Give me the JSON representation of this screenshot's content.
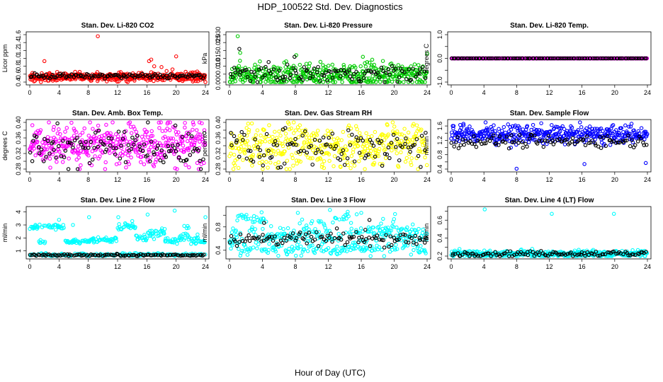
{
  "figure": {
    "title": "HDP_100522  Std. Dev. Diagnostics",
    "xlabel": "Hour of Day (UTC)"
  },
  "chart_data": [
    {
      "type": "scatter",
      "title": "Stan. Dev. Li-820 CO2",
      "ylabel": "Licor ppm",
      "xlim": [
        0,
        24
      ],
      "ylim": [
        0.4,
        1.6
      ],
      "xticks": [
        0,
        4,
        8,
        12,
        16,
        20,
        24
      ],
      "yticks": [
        0.4,
        0.6,
        0.8,
        1.0,
        1.2,
        1.4,
        1.6
      ],
      "ytick_labels": [
        "0.4",
        "0.6",
        "0.8",
        "1.0",
        "1.2",
        "1.4",
        "1.6"
      ],
      "series": [
        {
          "color": "#ff0000",
          "base": 0.53,
          "spread": 0.05,
          "extra": [
            [
              2.0,
              0.93
            ],
            [
              9.3,
              1.56
            ],
            [
              16.3,
              0.93
            ],
            [
              16.6,
              0.97
            ],
            [
              20.0,
              1.05
            ],
            [
              17.0,
              0.8
            ],
            [
              18.0,
              0.78
            ],
            [
              18.7,
              0.68
            ],
            [
              19.5,
              0.72
            ],
            [
              4.8,
              0.62
            ],
            [
              2.7,
              0.63
            ],
            [
              21.3,
              0.66
            ],
            [
              24.0,
              0.4
            ],
            [
              12.4,
              0.58
            ],
            [
              6.2,
              0.66
            ]
          ]
        },
        {
          "color": "#000000",
          "base": 0.55,
          "spread": 0.03,
          "sparse": true,
          "extra": []
        }
      ]
    },
    {
      "type": "scatter",
      "title": "Stan. Dev. Li-820 Pressure",
      "ylabel": "kPa",
      "xlim": [
        0,
        24
      ],
      "ylim": [
        0.0,
        0.03
      ],
      "xticks": [
        0,
        4,
        8,
        12,
        16,
        20,
        24
      ],
      "yticks": [
        0.0,
        0.005,
        0.01,
        0.015,
        0.02,
        0.025,
        0.03
      ],
      "ytick_labels": [
        "0.000",
        "",
        "0.010",
        "0.015",
        "",
        "0.025",
        "0.030"
      ],
      "series": [
        {
          "color": "#00cc00",
          "base": 0.0045,
          "spread": 0.0035,
          "extra": [
            [
              1.0,
              0.029
            ],
            [
              1.3,
              0.0185
            ],
            [
              8.1,
              0.017
            ],
            [
              16.2,
              0.016
            ],
            [
              24.0,
              0.018
            ],
            [
              3.1,
              0.011
            ],
            [
              12.5,
              0.011
            ],
            [
              5.9,
              0.009
            ],
            [
              17.2,
              0.0095
            ],
            [
              20.1,
              0.0085
            ]
          ]
        },
        {
          "color": "#000000",
          "base": 0.0055,
          "spread": 0.0025,
          "sparse": true,
          "extra": [
            [
              1.2,
              0.021
            ],
            [
              7.9,
              0.016
            ]
          ]
        }
      ]
    },
    {
      "type": "scatter",
      "title": "Stan. Dev. Li-820 Temp.",
      "ylabel": "degrees C",
      "xlim": [
        0,
        24
      ],
      "ylim": [
        -1.0,
        1.0
      ],
      "xticks": [
        0,
        4,
        8,
        12,
        16,
        20,
        24
      ],
      "yticks": [
        -1.0,
        -0.5,
        0.0,
        0.5,
        1.0
      ],
      "ytick_labels": [
        "-1.0",
        "",
        "0.0",
        "",
        "1.0"
      ],
      "series": [
        {
          "color": "#ff00ff",
          "base": 0.0,
          "spread": 0.0,
          "extra": []
        },
        {
          "color": "#000000",
          "base": 0.0,
          "spread": 0.0,
          "sparse": true,
          "extra": []
        }
      ]
    },
    {
      "type": "scatter",
      "title": "Stan. Dev. Amb. Box Temp.",
      "ylabel": "degrees C",
      "xlim": [
        0,
        24
      ],
      "ylim": [
        0.28,
        0.4
      ],
      "xticks": [
        0,
        4,
        8,
        12,
        16,
        20,
        24
      ],
      "yticks": [
        0.28,
        0.3,
        0.32,
        0.34,
        0.36,
        0.38,
        0.4
      ],
      "ytick_labels": [
        "0.28",
        "",
        "0.32",
        "",
        "0.36",
        "",
        "0.40"
      ],
      "series": [
        {
          "color": "#ff00ff",
          "base": 0.34,
          "spread": 0.028,
          "extra": [
            [
              23.2,
              0.4
            ],
            [
              18.8,
              0.397
            ]
          ]
        },
        {
          "color": "#000000",
          "base": 0.335,
          "spread": 0.025,
          "sparse": true,
          "extra": [
            [
              19.9,
              0.392
            ]
          ]
        }
      ]
    },
    {
      "type": "scatter",
      "title": "Stan. Dev. Gas Stream RH",
      "ylabel": "percent",
      "xlim": [
        0,
        24
      ],
      "ylim": [
        0.28,
        0.4
      ],
      "xticks": [
        0,
        4,
        8,
        12,
        16,
        20,
        24
      ],
      "yticks": [
        0.28,
        0.3,
        0.32,
        0.34,
        0.36,
        0.38,
        0.4
      ],
      "ytick_labels": [
        "0.28",
        "",
        "0.32",
        "",
        "0.36",
        "",
        "0.40"
      ],
      "series": [
        {
          "color": "#ffff00",
          "base": 0.34,
          "spread": 0.028,
          "extra": [
            [
              7.8,
              0.402
            ]
          ]
        },
        {
          "color": "#000000",
          "base": 0.335,
          "spread": 0.022,
          "sparse": true,
          "extra": []
        }
      ]
    },
    {
      "type": "scatter",
      "title": "Stan. Dev. Sample Flow",
      "ylabel": "ml/min",
      "xlim": [
        0,
        24
      ],
      "ylim": [
        0.4,
        1.7
      ],
      "xticks": [
        0,
        4,
        8,
        12,
        16,
        20,
        24
      ],
      "yticks": [
        0.4,
        0.6,
        0.8,
        1.0,
        1.2,
        1.4,
        1.6
      ],
      "ytick_labels": [
        "0.4",
        "",
        "0.8",
        "",
        "1.2",
        "",
        "1.6"
      ],
      "series": [
        {
          "color": "#0000ff",
          "base": 1.36,
          "spread": 0.12,
          "extra": [
            [
              8.0,
              0.41
            ],
            [
              16.3,
              0.54
            ],
            [
              23.8,
              0.57
            ],
            [
              1.1,
              1.63
            ],
            [
              1.5,
              1.66
            ],
            [
              4.2,
              1.72
            ],
            [
              5.2,
              1.62
            ],
            [
              9.3,
              1.6
            ],
            [
              12.8,
              1.58
            ]
          ]
        },
        {
          "color": "#000000",
          "base": 1.18,
          "spread": 0.09,
          "sparse": true,
          "extra": []
        }
      ]
    },
    {
      "type": "scatter",
      "title": "Stan. Dev. Line 2 Flow",
      "ylabel": "ml/min",
      "xlim": [
        0,
        24
      ],
      "ylim": [
        0.6,
        4.2
      ],
      "xticks": [
        0,
        4,
        8,
        12,
        16,
        20,
        24
      ],
      "yticks": [
        1,
        2,
        3,
        4
      ],
      "ytick_labels": [
        "1",
        "2",
        "3",
        "4"
      ],
      "bands": [
        [
          0.0,
          4.8,
          2.85,
          0.18
        ],
        [
          1.2,
          2.2,
          1.7,
          0.25
        ],
        [
          4.8,
          8.0,
          1.75,
          0.15
        ],
        [
          8.0,
          12.0,
          1.85,
          0.18
        ],
        [
          12.0,
          14.5,
          2.9,
          0.25
        ],
        [
          14.5,
          16.0,
          2.0,
          0.25
        ],
        [
          16.0,
          18.5,
          2.45,
          0.45
        ],
        [
          18.5,
          20.0,
          1.8,
          0.2
        ],
        [
          20.0,
          23.5,
          2.0,
          0.45
        ],
        [
          21.0,
          21.8,
          2.85,
          0.15
        ],
        [
          21.8,
          24.0,
          1.7,
          0.15
        ]
      ],
      "series": [
        {
          "color": "#00ffff",
          "base": 0.7,
          "spread": 0.06,
          "extra": [
            [
              8.1,
              3.6
            ],
            [
              12.1,
              3.6
            ],
            [
              16.1,
              3.8
            ],
            [
              19.8,
              4.1
            ],
            [
              24.0,
              3.6
            ],
            [
              4.0,
              3.4
            ],
            [
              5.9,
              3.0
            ],
            [
              14.0,
              3.3
            ]
          ]
        },
        {
          "color": "#000000",
          "base": 0.68,
          "spread": 0.04,
          "sparse": true,
          "extra": []
        }
      ]
    },
    {
      "type": "scatter",
      "title": "Stan. Dev. Line 3 Flow",
      "ylabel": "ml/min",
      "xlim": [
        0,
        24
      ],
      "ylim": [
        0.3,
        1.1
      ],
      "xticks": [
        0,
        4,
        8,
        12,
        16,
        20,
        24
      ],
      "yticks": [
        0.4,
        0.6,
        0.8,
        1.0
      ],
      "ytick_labels": [
        "0.4",
        "",
        "0.8",
        ""
      ],
      "bands": [
        [
          0.0,
          24.0,
          0.66,
          0.14
        ],
        [
          0.8,
          4.5,
          0.95,
          0.08
        ],
        [
          8.0,
          12.0,
          0.85,
          0.12
        ],
        [
          12.5,
          15.5,
          0.95,
          0.1
        ],
        [
          16.0,
          20.0,
          0.78,
          0.12
        ]
      ],
      "series": [
        {
          "color": "#00ffff",
          "base": 0.42,
          "spread": 0.05,
          "extra": [
            [
              12.2,
              1.09
            ],
            [
              16.0,
              1.04
            ],
            [
              3.9,
              1.05
            ],
            [
              8.3,
              1.04
            ],
            [
              20.1,
              1.02
            ]
          ]
        },
        {
          "color": "#000000",
          "base": 0.6,
          "spread": 0.06,
          "sparse": true,
          "extra": [
            [
              4.2,
              0.87
            ],
            [
              17.0,
              0.92
            ],
            [
              16.5,
              0.75
            ],
            [
              23.8,
              0.62
            ]
          ]
        }
      ]
    },
    {
      "type": "scatter",
      "title": "Stan. Dev. Line 4 (LT) Flow",
      "ylabel": "ml/min",
      "xlim": [
        0,
        24
      ],
      "ylim": [
        0.2,
        0.72
      ],
      "xticks": [
        0,
        4,
        8,
        12,
        16,
        20,
        24
      ],
      "yticks": [
        0.2,
        0.3,
        0.4,
        0.5,
        0.6,
        0.7
      ],
      "ytick_labels": [
        "0.2",
        "",
        "0.4",
        "",
        "0.6",
        ""
      ],
      "series": [
        {
          "color": "#00ffff",
          "base": 0.225,
          "spread": 0.02,
          "extra": [
            [
              4.1,
              0.72
            ],
            [
              12.3,
              0.67
            ],
            [
              19.9,
              0.67
            ],
            [
              9.9,
              0.28
            ],
            [
              15.6,
              0.27
            ]
          ]
        },
        {
          "color": "#000000",
          "base": 0.228,
          "spread": 0.015,
          "sparse": true,
          "extra": []
        }
      ]
    }
  ]
}
